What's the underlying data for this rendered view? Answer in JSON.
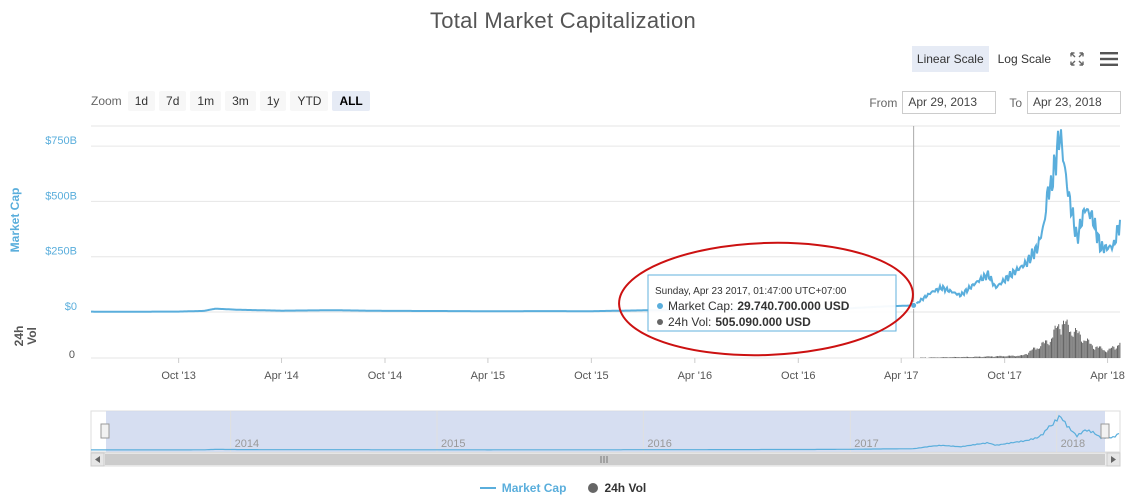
{
  "title": "Total Market Capitalization",
  "scale": {
    "linear": "Linear Scale",
    "log": "Log Scale",
    "active": "linear"
  },
  "zoom": {
    "label": "Zoom",
    "buttons": [
      "1d",
      "7d",
      "1m",
      "3m",
      "1y",
      "YTD",
      "ALL"
    ],
    "active": "ALL"
  },
  "range": {
    "from_label": "From",
    "from": "Apr 29, 2013",
    "to_label": "To",
    "to": "Apr 23, 2018"
  },
  "tooltip": {
    "date": "Sunday, Apr 23 2017, 01:47:00 UTC+07:00",
    "market_cap_label": "Market Cap:",
    "market_cap_value": "29.740.700.000 USD",
    "volume_label": "24h Vol:",
    "volume_value": "505.090.000 USD"
  },
  "legend": {
    "market_cap": "Market Cap",
    "volume": "24h Vol"
  },
  "colors": {
    "market_cap": "#5aaedc",
    "volume": "#666666",
    "annotation": "#cc1111",
    "navigator_fill": "#cfd8ef"
  },
  "chart_data": {
    "type": "line",
    "title": "Total Market Capitalization",
    "xlabel": "",
    "ylabel": "Market Cap",
    "ylabel2": "24h Vol",
    "x_range": [
      "2013-04-29",
      "2018-04-23"
    ],
    "ylim": [
      0,
      850
    ],
    "y_unit": "B USD",
    "y_ticks": [
      "$0",
      "$250B",
      "$500B",
      "$750B"
    ],
    "volume_ticks": [
      "0"
    ],
    "x_ticks": [
      "Oct '13",
      "Apr '14",
      "Oct '14",
      "Apr '15",
      "Oct '15",
      "Apr '16",
      "Oct '16",
      "Apr '17",
      "Oct '17",
      "Apr '18"
    ],
    "navigator_ticks": [
      "2014",
      "2015",
      "2016",
      "2017",
      "2018"
    ],
    "grid": true,
    "legend_position": "bottom-center",
    "series": [
      {
        "name": "Market Cap",
        "x": [
          "2013-04-29",
          "2013-07-01",
          "2013-10-01",
          "2013-11-15",
          "2013-12-05",
          "2014-01-15",
          "2014-04-01",
          "2014-07-01",
          "2014-10-01",
          "2015-01-01",
          "2015-04-01",
          "2015-07-01",
          "2015-10-01",
          "2016-01-01",
          "2016-04-01",
          "2016-07-01",
          "2016-10-01",
          "2017-01-01",
          "2017-03-01",
          "2017-04-23",
          "2017-05-25",
          "2017-06-12",
          "2017-07-15",
          "2017-08-15",
          "2017-09-02",
          "2017-09-15",
          "2017-10-15",
          "2017-11-08",
          "2017-11-28",
          "2017-12-10",
          "2017-12-17",
          "2017-12-22",
          "2018-01-07",
          "2018-01-20",
          "2018-02-06",
          "2018-02-20",
          "2018-03-05",
          "2018-03-20",
          "2018-04-01",
          "2018-04-12",
          "2018-04-23"
        ],
        "values": [
          1.6,
          1.3,
          1.9,
          5,
          15,
          10,
          6,
          8,
          5,
          4.5,
          3.5,
          4,
          3.7,
          7.5,
          7.5,
          10.5,
          11,
          17,
          25,
          29.7,
          90,
          110,
          75,
          140,
          170,
          110,
          175,
          220,
          290,
          400,
          560,
          560,
          810,
          560,
          330,
          470,
          430,
          290,
          290,
          300,
          410
        ]
      },
      {
        "name": "24h Vol",
        "x": [
          "2013-04-29",
          "2016-12-31",
          "2017-04-23",
          "2017-08-15",
          "2017-11-01",
          "2017-12-20",
          "2018-01-07",
          "2018-02-06",
          "2018-03-05",
          "2018-04-01",
          "2018-04-23"
        ],
        "values": [
          0.05,
          0.3,
          0.5,
          2,
          4,
          30,
          60,
          40,
          20,
          12,
          25
        ]
      }
    ]
  }
}
